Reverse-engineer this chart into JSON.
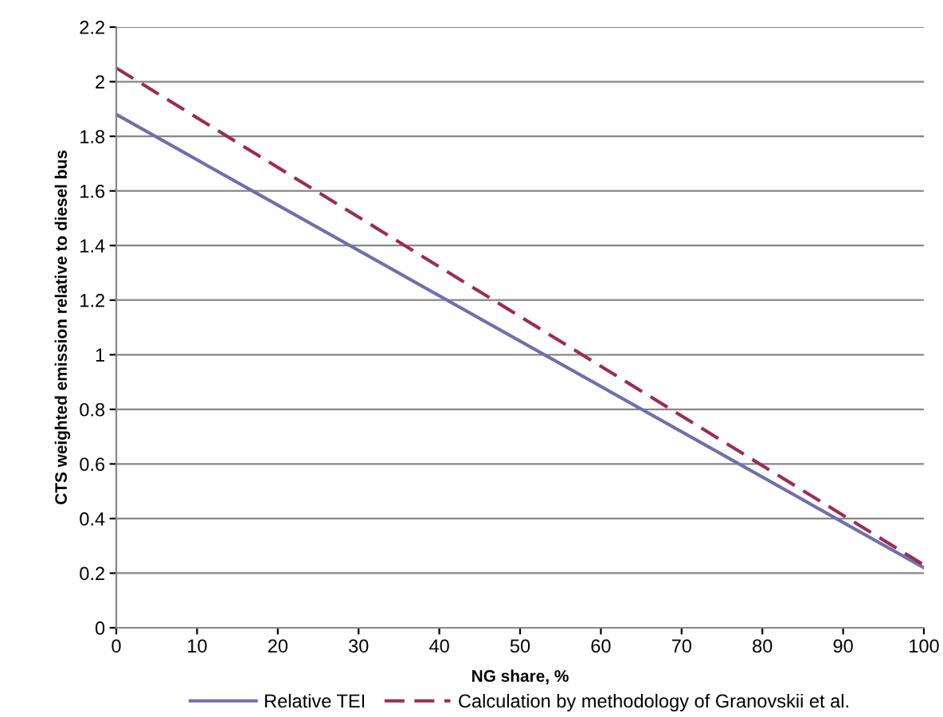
{
  "chart_data": {
    "type": "line",
    "xlabel": "NG share, %",
    "ylabel": "CTS weighted emission relative to diesel bus",
    "x": [
      0,
      100
    ],
    "series": [
      {
        "name": "Relative TEI",
        "color": "#6f6fae",
        "values": [
          1.88,
          0.22
        ],
        "line_style": "solid"
      },
      {
        "name": "Calculation by methodology of Granovskii et al.",
        "color": "#9b2d55",
        "values": [
          2.05,
          0.23
        ],
        "line_style": "dashed"
      }
    ],
    "xlim": [
      0,
      100
    ],
    "xticks": [
      0,
      10,
      20,
      30,
      40,
      50,
      60,
      70,
      80,
      90,
      100
    ],
    "ylim": [
      0,
      2.2
    ],
    "yticks": [
      0,
      0.2,
      0.4,
      0.6,
      0.8,
      1,
      1.2,
      1.4,
      1.6,
      1.8,
      2,
      2.2
    ],
    "grid": "y",
    "legend": "bottom",
    "marker": "none"
  }
}
